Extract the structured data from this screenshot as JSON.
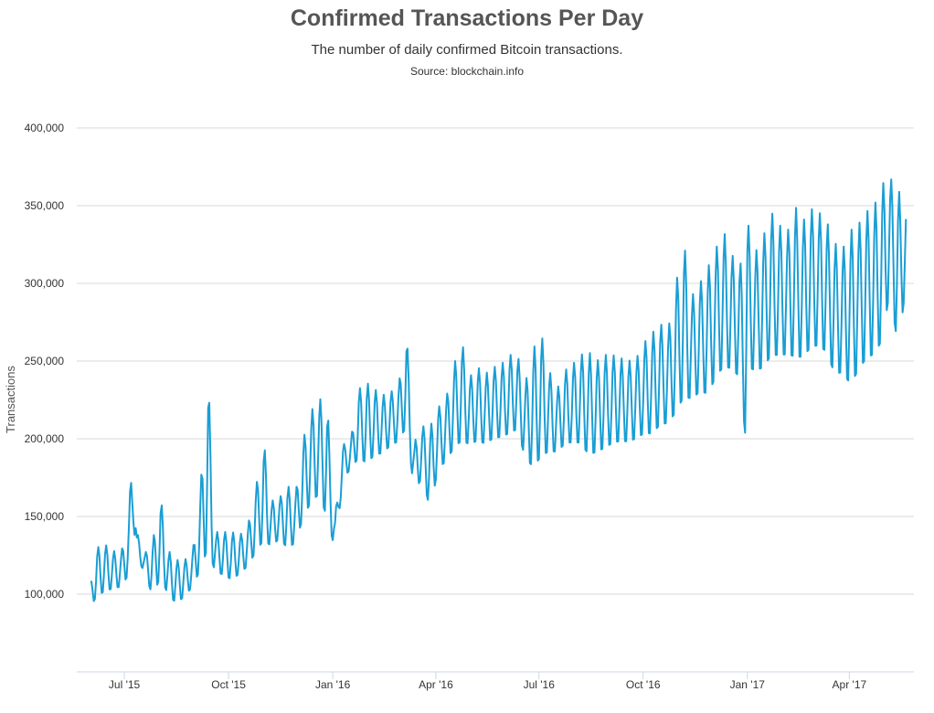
{
  "chart_data": {
    "type": "line",
    "title": "Confirmed Transactions Per Day",
    "subtitle": "The number of daily confirmed Bitcoin transactions.",
    "source": "Source: blockchain.info",
    "ylabel": "Transactions",
    "xlabel": "",
    "ylim": [
      50000,
      400000
    ],
    "y_ticks": [
      "100,000",
      "150,000",
      "200,000",
      "250,000",
      "300,000",
      "350,000",
      "400,000"
    ],
    "y_tick_values": [
      100000,
      150000,
      200000,
      250000,
      300000,
      350000,
      400000
    ],
    "x_ticks": [
      "Jul '15",
      "Oct '15",
      "Jan '16",
      "Apr '16",
      "Jul '16",
      "Oct '16",
      "Jan '17",
      "Apr '17"
    ],
    "x_tick_dates": [
      "2015-07-01",
      "2015-10-01",
      "2016-01-01",
      "2016-04-01",
      "2016-07-01",
      "2016-10-01",
      "2017-01-01",
      "2017-04-01"
    ],
    "xlim": [
      "2015-05-20",
      "2017-05-28"
    ],
    "grid": "horizontal",
    "line_color": "#1a9ed4",
    "series": [
      {
        "name": "",
        "x": [
          "2015-06-01",
          "2015-06-07",
          "2015-06-14",
          "2015-06-21",
          "2015-06-28",
          "2015-07-05",
          "2015-07-09",
          "2015-07-12",
          "2015-07-19",
          "2015-07-26",
          "2015-08-02",
          "2015-08-09",
          "2015-08-16",
          "2015-08-23",
          "2015-08-30",
          "2015-09-06",
          "2015-09-13",
          "2015-09-18",
          "2015-09-20",
          "2015-09-27",
          "2015-10-04",
          "2015-10-11",
          "2015-10-18",
          "2015-10-25",
          "2015-11-01",
          "2015-11-08",
          "2015-11-15",
          "2015-11-22",
          "2015-11-29",
          "2015-12-06",
          "2015-12-13",
          "2015-12-20",
          "2015-12-27",
          "2016-01-03",
          "2016-01-10",
          "2016-01-17",
          "2016-01-24",
          "2016-01-31",
          "2016-02-07",
          "2016-02-14",
          "2016-02-21",
          "2016-02-28",
          "2016-03-06",
          "2016-03-13",
          "2016-03-20",
          "2016-03-27",
          "2016-04-03",
          "2016-04-10",
          "2016-04-17",
          "2016-04-24",
          "2016-05-01",
          "2016-05-08",
          "2016-05-15",
          "2016-05-22",
          "2016-05-29",
          "2016-06-05",
          "2016-06-12",
          "2016-06-19",
          "2016-06-26",
          "2016-07-03",
          "2016-07-10",
          "2016-07-17",
          "2016-07-24",
          "2016-07-31",
          "2016-08-07",
          "2016-08-14",
          "2016-08-21",
          "2016-08-28",
          "2016-09-04",
          "2016-09-11",
          "2016-09-18",
          "2016-09-25",
          "2016-10-02",
          "2016-10-09",
          "2016-10-16",
          "2016-10-23",
          "2016-10-30",
          "2016-11-06",
          "2016-11-13",
          "2016-11-20",
          "2016-11-27",
          "2016-12-04",
          "2016-12-11",
          "2016-12-18",
          "2016-12-25",
          "2016-12-30",
          "2017-01-01",
          "2017-01-08",
          "2017-01-15",
          "2017-01-22",
          "2017-01-29",
          "2017-02-05",
          "2017-02-12",
          "2017-02-19",
          "2017-02-26",
          "2017-03-05",
          "2017-03-12",
          "2017-03-19",
          "2017-03-26",
          "2017-04-02",
          "2017-04-09",
          "2017-04-16",
          "2017-04-23",
          "2017-04-30",
          "2017-05-07",
          "2017-05-14",
          "2017-05-21"
        ],
        "low": [
          88000,
          92000,
          95000,
          98000,
          100000,
          104000,
          130000,
          118000,
          112000,
          90000,
          100000,
          92000,
          88000,
          93000,
          100000,
          104000,
          104000,
          110000,
          108000,
          106000,
          102000,
          108000,
          112000,
          118000,
          120000,
          124000,
          130000,
          120000,
          126000,
          138000,
          146000,
          150000,
          132000,
          124000,
          170000,
          176000,
          178000,
          172000,
          180000,
          182000,
          188000,
          190000,
          194000,
          158000,
          168000,
          142000,
          172000,
          176000,
          182000,
          184000,
          186000,
          188000,
          186000,
          190000,
          190000,
          192000,
          195000,
          176000,
          164000,
          170000,
          180000,
          182000,
          186000,
          186000,
          184000,
          174000,
          178000,
          180000,
          184000,
          186000,
          186000,
          188000,
          190000,
          188000,
          194000,
          196000,
          198000,
          204000,
          210000,
          214000,
          210000,
          220000,
          226000,
          228000,
          222000,
          181000,
          224000,
          226000,
          226000,
          232000,
          234000,
          236000,
          230000,
          232000,
          238000,
          240000,
          236000,
          222000,
          224000,
          212000,
          222000,
          230000,
          232000,
          240000,
          280000,
          234000,
          286000
        ],
        "high": [
          108000,
          130000,
          132000,
          128000,
          126000,
          150000,
          214000,
          140000,
          126000,
          134000,
          162000,
          128000,
          122000,
          122000,
          126000,
          166000,
          242000,
          148000,
          140000,
          140000,
          140000,
          138000,
          144000,
          168000,
          198000,
          160000,
          162000,
          170000,
          164000,
          200000,
          218000,
          226000,
          222000,
          150000,
          196000,
          200000,
          232000,
          236000,
          232000,
          228000,
          230000,
          234000,
          268000,
          198000,
          208000,
          208000,
          220000,
          226000,
          248000,
          262000,
          240000,
          246000,
          242000,
          246000,
          248000,
          254000,
          254000,
          236000,
          258000,
          268000,
          244000,
          232000,
          244000,
          248000,
          254000,
          256000,
          250000,
          254000,
          254000,
          252000,
          250000,
          252000,
          262000,
          268000,
          274000,
          270000,
          300000,
          326000,
          292000,
          300000,
          310000,
          322000,
          334000,
          318000,
          316000,
          300000,
          340000,
          320000,
          330000,
          346000,
          338000,
          332000,
          350000,
          340000,
          348000,
          346000,
          340000,
          326000,
          322000,
          334000,
          338000,
          346000,
          350000,
          364000,
          368000,
          360000,
          352000
        ]
      }
    ]
  }
}
